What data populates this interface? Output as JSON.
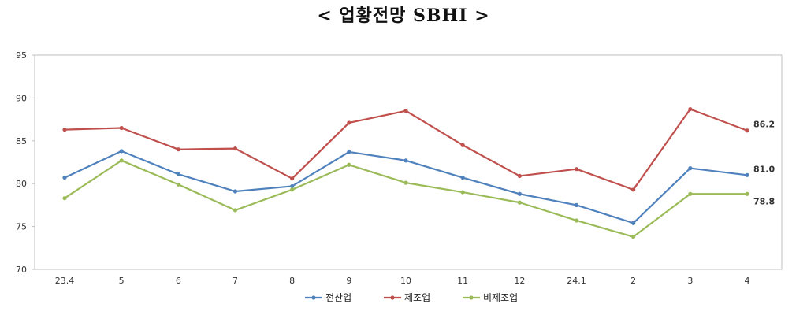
{
  "chart_data": {
    "type": "line",
    "title": "< 업황전망 SBHI >",
    "categories": [
      "23.4",
      "5",
      "6",
      "7",
      "8",
      "9",
      "10",
      "11",
      "12",
      "24.1",
      "2",
      "3",
      "4"
    ],
    "ylim": [
      70,
      95
    ],
    "yticks": [
      70,
      75,
      80,
      85,
      90,
      95
    ],
    "grid": false,
    "legend_position": "bottom",
    "series": [
      {
        "name": "전산업",
        "color": "#4F81BD",
        "values": [
          80.7,
          83.8,
          81.1,
          79.1,
          79.7,
          83.7,
          82.7,
          80.7,
          78.8,
          77.5,
          75.4,
          81.8,
          81.0
        ],
        "end_label": "81.0"
      },
      {
        "name": "제조업",
        "color": "#C0504D",
        "values": [
          86.3,
          86.5,
          84.0,
          84.1,
          80.6,
          87.1,
          88.5,
          84.5,
          80.9,
          81.7,
          79.3,
          88.7,
          86.2
        ],
        "end_label": "86.2"
      },
      {
        "name": "비제조업",
        "color": "#9BBB59",
        "values": [
          78.3,
          82.7,
          79.9,
          76.9,
          79.3,
          82.2,
          80.1,
          79.0,
          77.8,
          75.7,
          73.8,
          78.8,
          78.8
        ],
        "end_label": "78.8"
      }
    ]
  }
}
